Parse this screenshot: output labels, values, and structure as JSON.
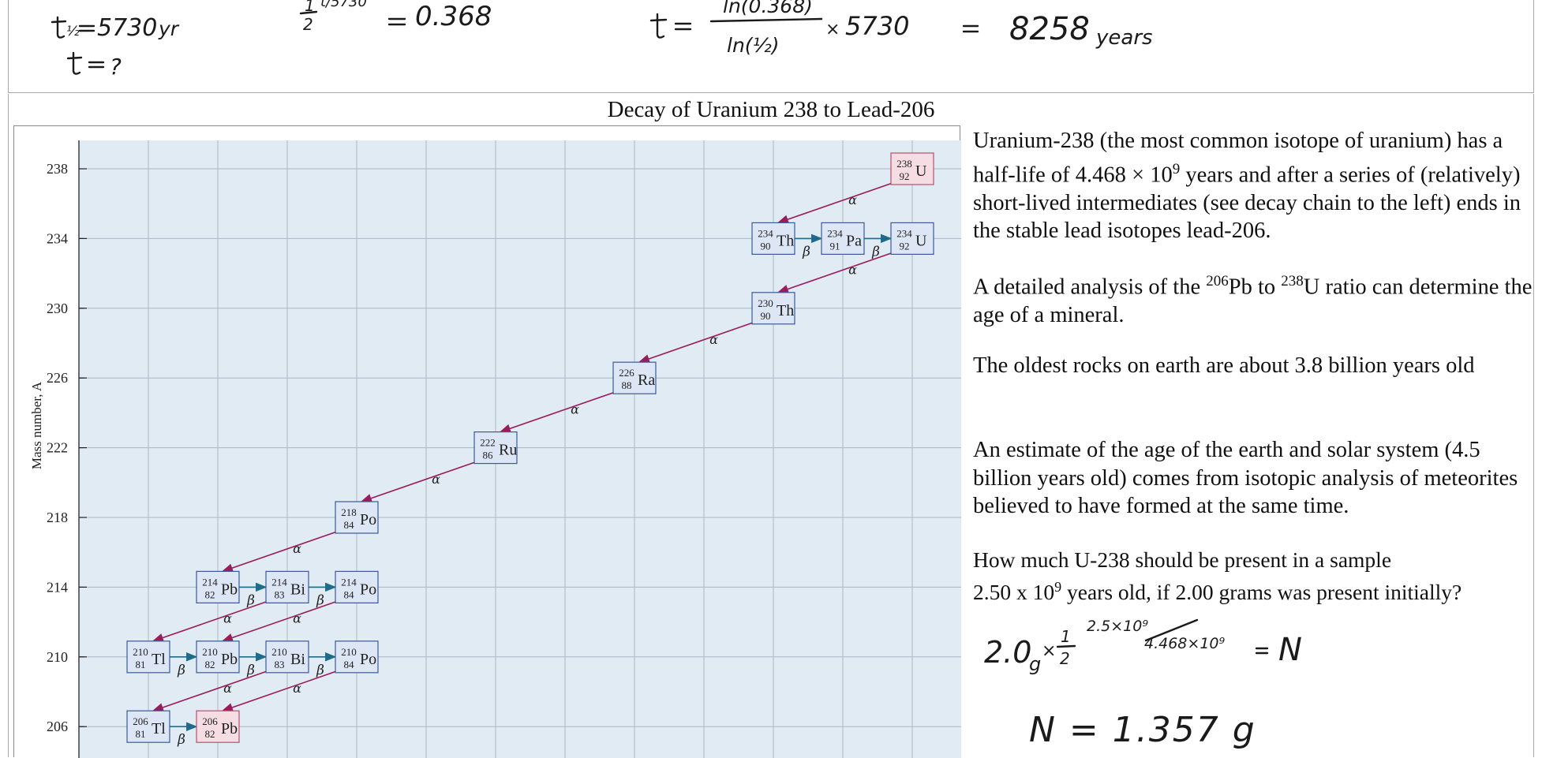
{
  "title": "Decay of Uranium 238 to Lead-206",
  "handwriting_top": {
    "given_half_life": "t½ = 5730 yr",
    "given_t": "t = ?",
    "ratio": "½^(t/5730) = 0.368",
    "formula": "t = ln(0.368) / ln(½) × 5730",
    "result_value": "= 8258",
    "result_unit": "years"
  },
  "chart": {
    "ylabel": "Mass number, A",
    "y_ticks": [
      238,
      234,
      230,
      226,
      222,
      218,
      214,
      210,
      206
    ],
    "colors": {
      "plot_bg": "#e1ebf4",
      "grid": "#a9b7c6",
      "alpha_arrow": "#9a1c5a",
      "beta_arrow": "#1f6c8a"
    },
    "nuclides": [
      {
        "id": "U238",
        "mass": "238",
        "atomic": "92",
        "symbol": "U",
        "col": 12,
        "A": 238,
        "final": true
      },
      {
        "id": "Th234",
        "mass": "234",
        "atomic": "90",
        "symbol": "Th",
        "col": 10,
        "A": 234
      },
      {
        "id": "Pa234",
        "mass": "234",
        "atomic": "91",
        "symbol": "Pa",
        "col": 11,
        "A": 234
      },
      {
        "id": "U234",
        "mass": "234",
        "atomic": "92",
        "symbol": "U",
        "col": 12,
        "A": 234
      },
      {
        "id": "Th230",
        "mass": "230",
        "atomic": "90",
        "symbol": "Th",
        "col": 10,
        "A": 230
      },
      {
        "id": "Ra226",
        "mass": "226",
        "atomic": "88",
        "symbol": "Ra",
        "col": 8,
        "A": 226
      },
      {
        "id": "Ru222",
        "mass": "222",
        "atomic": "86",
        "symbol": "Ru",
        "col": 6,
        "A": 222
      },
      {
        "id": "Po218",
        "mass": "218",
        "atomic": "84",
        "symbol": "Po",
        "col": 4,
        "A": 218
      },
      {
        "id": "Pb214",
        "mass": "214",
        "atomic": "82",
        "symbol": "Pb",
        "col": 2,
        "A": 214
      },
      {
        "id": "Bi214",
        "mass": "214",
        "atomic": "83",
        "symbol": "Bi",
        "col": 3,
        "A": 214
      },
      {
        "id": "Po214",
        "mass": "214",
        "atomic": "84",
        "symbol": "Po",
        "col": 4,
        "A": 214
      },
      {
        "id": "Tl210",
        "mass": "210",
        "atomic": "81",
        "symbol": "Tl",
        "col": 1,
        "A": 210
      },
      {
        "id": "Pb210",
        "mass": "210",
        "atomic": "82",
        "symbol": "Pb",
        "col": 2,
        "A": 210
      },
      {
        "id": "Bi210",
        "mass": "210",
        "atomic": "83",
        "symbol": "Bi",
        "col": 3,
        "A": 210
      },
      {
        "id": "Po210",
        "mass": "210",
        "atomic": "84",
        "symbol": "Po",
        "col": 4,
        "A": 210
      },
      {
        "id": "Tl206",
        "mass": "206",
        "atomic": "81",
        "symbol": "Tl",
        "col": 1,
        "A": 206
      },
      {
        "id": "Pb206",
        "mass": "206",
        "atomic": "82",
        "symbol": "Pb",
        "col": 2,
        "A": 206,
        "final": true
      }
    ],
    "decays": [
      {
        "from": "U238",
        "to": "Th234",
        "type": "alpha",
        "label": "α"
      },
      {
        "from": "Th234",
        "to": "Pa234",
        "type": "beta",
        "label": "β"
      },
      {
        "from": "Pa234",
        "to": "U234",
        "type": "beta",
        "label": "β"
      },
      {
        "from": "U234",
        "to": "Th230",
        "type": "alpha",
        "label": "α"
      },
      {
        "from": "Th230",
        "to": "Ra226",
        "type": "alpha",
        "label": "α"
      },
      {
        "from": "Ra226",
        "to": "Ru222",
        "type": "alpha",
        "label": "α"
      },
      {
        "from": "Ru222",
        "to": "Po218",
        "type": "alpha",
        "label": "α"
      },
      {
        "from": "Po218",
        "to": "Pb214",
        "type": "alpha",
        "label": "α"
      },
      {
        "from": "Pb214",
        "to": "Bi214",
        "type": "beta",
        "label": "β"
      },
      {
        "from": "Bi214",
        "to": "Po214",
        "type": "beta",
        "label": "β"
      },
      {
        "from": "Bi214",
        "to": "Tl210",
        "type": "alpha",
        "label": "α"
      },
      {
        "from": "Po214",
        "to": "Pb210",
        "type": "alpha",
        "label": "α"
      },
      {
        "from": "Tl210",
        "to": "Pb210",
        "type": "beta",
        "label": "β"
      },
      {
        "from": "Pb210",
        "to": "Bi210",
        "type": "beta",
        "label": "β"
      },
      {
        "from": "Bi210",
        "to": "Po210",
        "type": "beta",
        "label": "β"
      },
      {
        "from": "Bi210",
        "to": "Tl206",
        "type": "alpha",
        "label": "α"
      },
      {
        "from": "Po210",
        "to": "Pb206",
        "type": "alpha",
        "label": "α"
      },
      {
        "from": "Tl206",
        "to": "Pb206",
        "type": "beta",
        "label": "β"
      }
    ]
  },
  "text": {
    "p1_a": "Uranium-238 (the most common isotope of uranium) has a half-life of 4.468 × 10",
    "p1_sup": "9",
    "p1_b": " years and after a series of (relatively) short-lived intermediates (see decay chain to the left) ends in the stable lead isotopes lead-206.",
    "p2_a": "A detailed analysis of the ",
    "p2_sup1": "206",
    "p2_b": "Pb to ",
    "p2_sup2": "238",
    "p2_c": "U ratio can determine the age of a mineral.",
    "p3": "The oldest rocks on earth are about 3.8 billion years old",
    "p4": "An estimate of the age of the earth and solar system (4.5 billion years old) comes from isotopic analysis of meteorites believed to have formed at the same time.",
    "q_a": "How much U-238 should be present in a sample",
    "q_b": "2.50 x 10",
    "q_sup": "9",
    "q_c": " years old, if 2.00 grams was present initially?"
  },
  "handwriting_work": {
    "lhs": "2.0g × ½",
    "exponent_num": "2.5×10⁹",
    "exponent_den": "4.468×10⁹",
    "rhs": "= N",
    "answer": "N = 1.357 g"
  }
}
